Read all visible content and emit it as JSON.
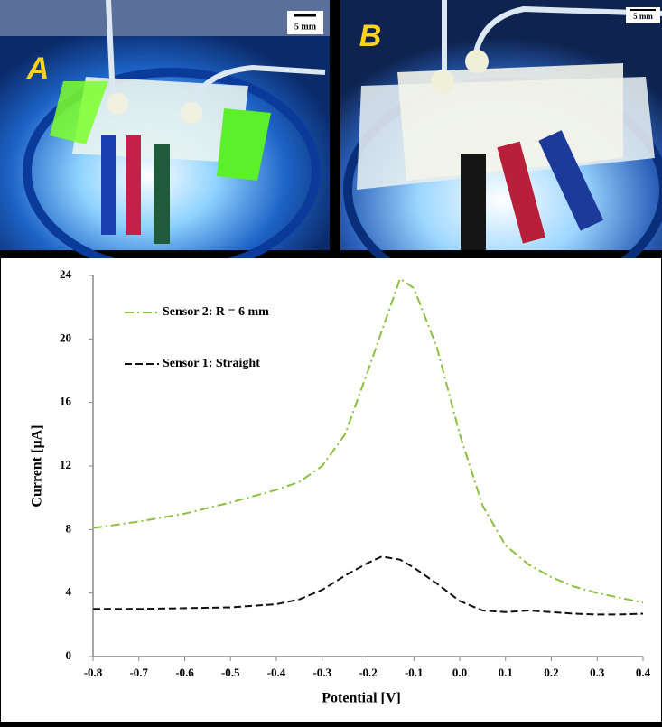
{
  "panels": [
    {
      "label": "A",
      "scale_bar": "5 mm"
    },
    {
      "label": "B",
      "scale_bar": "5 mm"
    }
  ],
  "chart_data": {
    "type": "line",
    "x_label": "Potential [V]",
    "y_label": "Current [µA]",
    "x": [
      -0.8,
      -0.7,
      -0.6,
      -0.5,
      -0.4,
      -0.35,
      -0.3,
      -0.25,
      -0.2,
      -0.17,
      -0.13,
      -0.1,
      -0.05,
      0,
      0.05,
      0.1,
      0.15,
      0.2,
      0.25,
      0.3,
      0.35,
      0.4
    ],
    "series": [
      {
        "name": "Sensor 2: R = 6 mm",
        "color": "#8cbf3f",
        "dash": "dash-dot",
        "values": [
          8.1,
          8.5,
          9.0,
          9.7,
          10.5,
          11.0,
          12.0,
          14.0,
          18.0,
          20.5,
          23.8,
          23.2,
          19.5,
          14.0,
          9.5,
          7.0,
          5.8,
          5.0,
          4.4,
          4.0,
          3.7,
          3.4
        ]
      },
      {
        "name": "Sensor 1: Straight",
        "color": "#111111",
        "dash": "dashed",
        "values": [
          3.0,
          3.0,
          3.05,
          3.1,
          3.3,
          3.6,
          4.2,
          5.1,
          5.9,
          6.3,
          6.1,
          5.6,
          4.6,
          3.5,
          2.9,
          2.8,
          2.9,
          2.8,
          2.7,
          2.65,
          2.65,
          2.7
        ]
      }
    ],
    "xlim": [
      -0.8,
      0.4
    ],
    "xticks": [
      -0.8,
      -0.7,
      -0.6,
      -0.5,
      -0.4,
      -0.3,
      -0.2,
      -0.1,
      {
        "value": 0,
        "label": "0.0"
      },
      0.1,
      0.2,
      0.3,
      0.4
    ],
    "ylim": [
      0,
      24
    ],
    "yticks": [
      0,
      4,
      8,
      12,
      16,
      20,
      24
    ],
    "legend": "upper left"
  }
}
